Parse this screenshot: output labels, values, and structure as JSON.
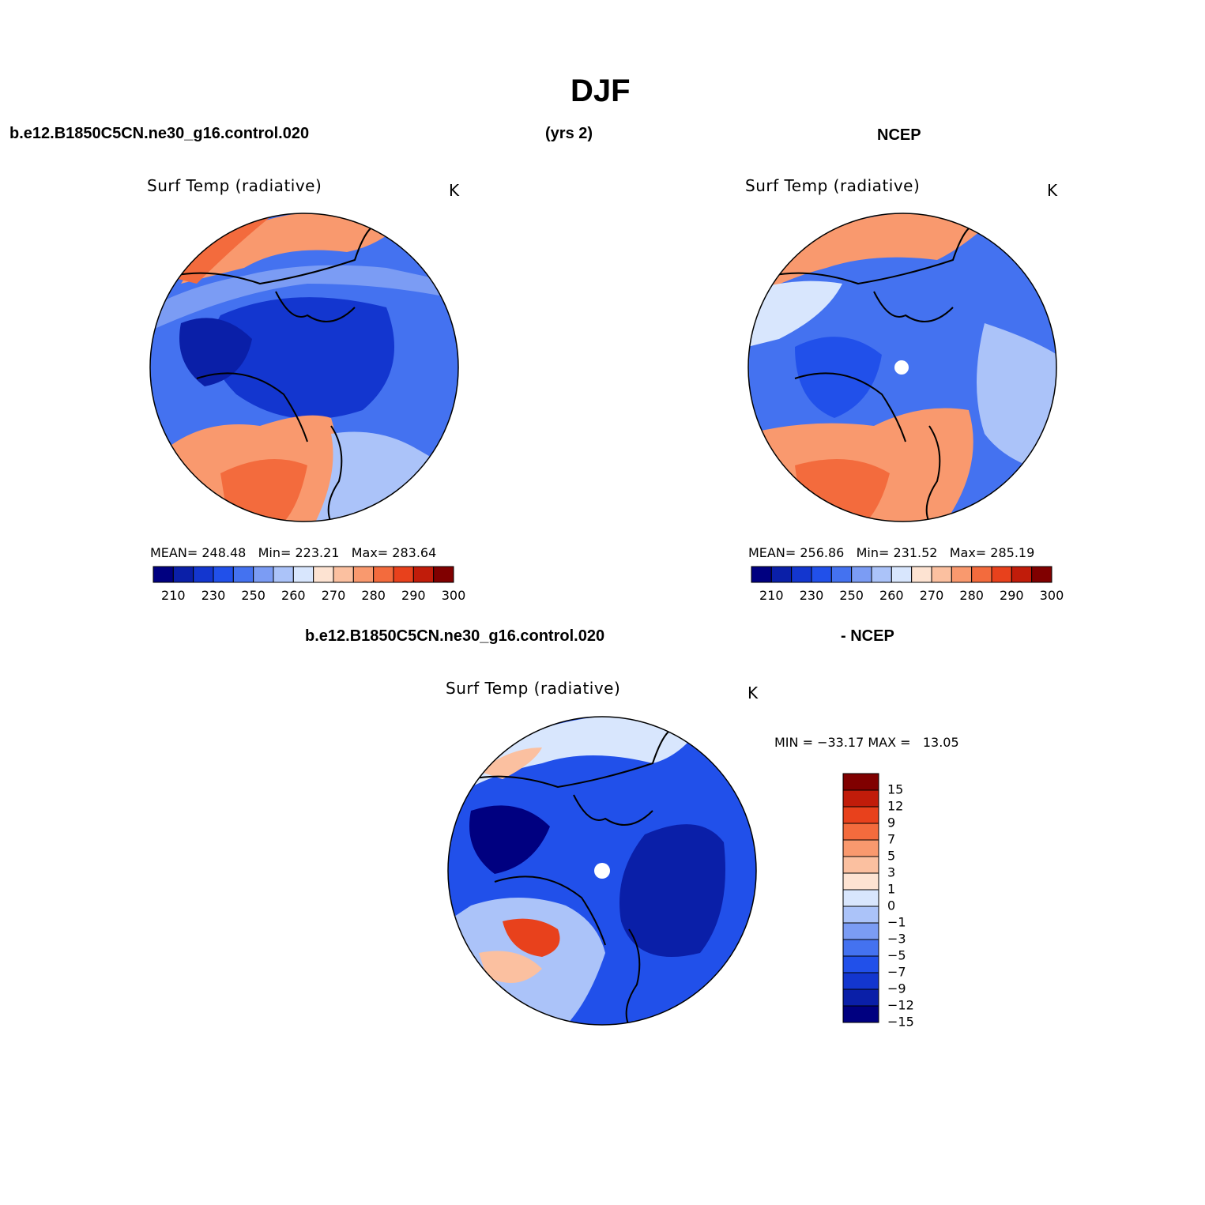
{
  "page": {
    "title": "DJF",
    "case_label": "b.e12.B1850C5CN.ne30_g16.control.020",
    "years_label": "(yrs 2)",
    "obs_label": "NCEP",
    "diff_case_label": "b.e12.B1850C5CN.ne30_g16.control.020",
    "diff_obs_label": "- NCEP"
  },
  "colors": {
    "scale": [
      "#000080",
      "#0a1fa8",
      "#1336cf",
      "#2150ea",
      "#4472f0",
      "#7b9cf4",
      "#abc3f9",
      "#d8e6fd",
      "#fde3d2",
      "#fbc0a0",
      "#f9996e",
      "#f36b3d",
      "#e8411c",
      "#c11c0a",
      "#800000"
    ],
    "diff_scale": [
      "#000080",
      "#0a1fa8",
      "#1336cf",
      "#2150ea",
      "#4472f0",
      "#7b9cf4",
      "#abc3f9",
      "#d8e6fd",
      "#fde3d2",
      "#fbc0a0",
      "#f9996e",
      "#f36b3d",
      "#e8411c",
      "#c11c0a",
      "#800000"
    ]
  },
  "chart_data": [
    {
      "type": "heatmap",
      "projection": "polar-stereographic north",
      "title": "Surf Temp (radiative)",
      "units": "K",
      "mean_label": "MEAN=",
      "mean": "248.48",
      "min_label": "Min=",
      "min": "223.21",
      "max_label": "Max=",
      "max": "283.64",
      "colorbar_ticks": [
        "210",
        "230",
        "250",
        "260",
        "270",
        "280",
        "290",
        "300"
      ]
    },
    {
      "type": "heatmap",
      "projection": "polar-stereographic north",
      "title": "Surf Temp (radiative)",
      "units": "K",
      "mean_label": "MEAN=",
      "mean": "256.86",
      "min_label": "Min=",
      "min": "231.52",
      "max_label": "Max=",
      "max": "285.19",
      "colorbar_ticks": [
        "210",
        "230",
        "250",
        "260",
        "270",
        "280",
        "290",
        "300"
      ]
    },
    {
      "type": "heatmap",
      "projection": "polar-stereographic north",
      "title": "Surf Temp (radiative)",
      "units": "K",
      "minmax_text": "MIN = −33.17 MAX =   13.05",
      "colorbar_ticks": [
        "15",
        "12",
        "9",
        "7",
        "5",
        "3",
        "1",
        "0",
        "−1",
        "−3",
        "−5",
        "−7",
        "−9",
        "−12",
        "−15"
      ]
    }
  ]
}
